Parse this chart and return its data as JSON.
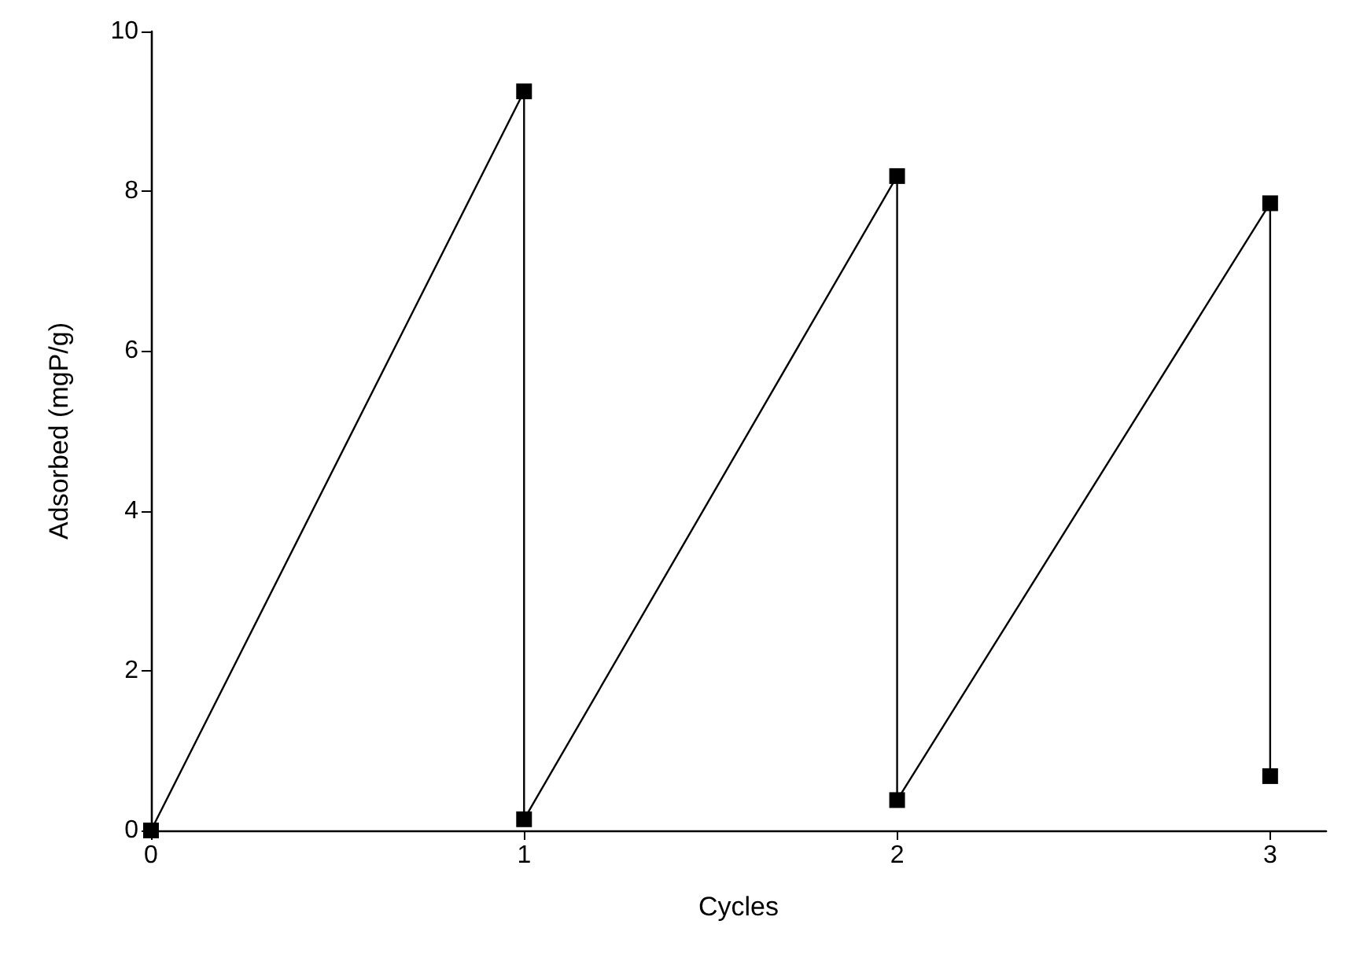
{
  "chart_data": {
    "type": "line",
    "xlabel": "Cycles",
    "ylabel": "Adsorbed (mgP/g)",
    "x": [
      0,
      1,
      1,
      2,
      2,
      3,
      3
    ],
    "series": [
      {
        "color": "#000000",
        "values": [
          0,
          9.25,
          0.14,
          8.19,
          0.38,
          7.85,
          0.68
        ]
      }
    ],
    "xlim": [
      0,
      3.15
    ],
    "xticks": [
      0,
      1,
      2,
      3
    ],
    "ylim": [
      0,
      10
    ],
    "yticks": [
      0,
      2,
      4,
      6,
      8,
      10
    ],
    "marker": "square",
    "line_style": "solid",
    "grid": false
  }
}
